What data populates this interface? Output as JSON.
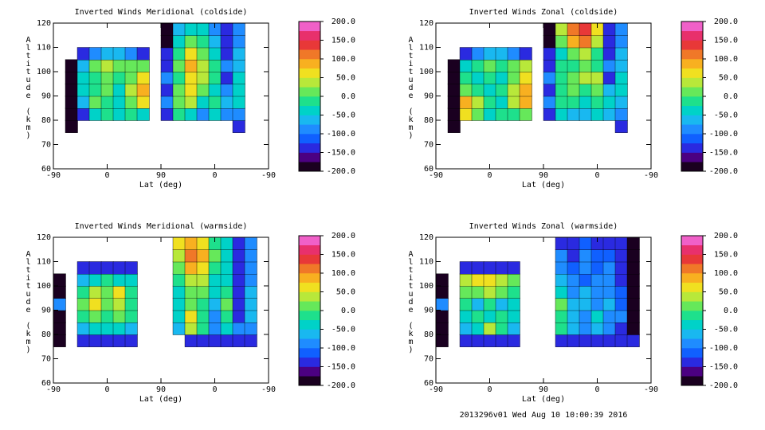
{
  "chart_data": [
    {
      "type": "heatmap",
      "title": "Inverted Winds Meridional (coldside)",
      "xlabel": "Lat (deg)",
      "ylabel": "Altitude (km)",
      "xcategories": [
        "-90",
        "0",
        "90",
        "0",
        "-90"
      ],
      "ylim": [
        60,
        120
      ],
      "yticks": [
        60,
        70,
        80,
        90,
        100,
        110,
        120
      ],
      "y": [
        77.5,
        82.5,
        87.5,
        92.5,
        97.5,
        102.5,
        107.5,
        112.5,
        117.5
      ],
      "z": [
        [
          null,
          -200,
          null,
          null,
          null,
          null,
          null,
          null,
          null,
          null,
          null,
          null,
          null,
          null,
          null,
          -150,
          null,
          null
        ],
        [
          null,
          -200,
          -150,
          -50,
          -25,
          -50,
          -25,
          -50,
          null,
          -150,
          -25,
          -50,
          -100,
          -50,
          -100,
          -100,
          null,
          null
        ],
        [
          null,
          -200,
          -75,
          0,
          -25,
          -50,
          0,
          50,
          null,
          -100,
          0,
          25,
          -50,
          -25,
          -75,
          -50,
          null,
          null
        ],
        [
          null,
          -200,
          -50,
          -25,
          0,
          -50,
          25,
          75,
          null,
          -150,
          0,
          50,
          0,
          -50,
          -100,
          -50,
          null,
          null
        ],
        [
          null,
          -200,
          -50,
          -25,
          0,
          -25,
          0,
          50,
          null,
          -100,
          -25,
          50,
          25,
          -25,
          -150,
          -50,
          null,
          null
        ],
        [
          null,
          -200,
          -75,
          0,
          25,
          0,
          0,
          0,
          null,
          -150,
          0,
          75,
          25,
          -25,
          -100,
          -75,
          null,
          null
        ],
        [
          null,
          null,
          -150,
          -100,
          -75,
          -75,
          -100,
          -150,
          null,
          -150,
          -25,
          50,
          0,
          -50,
          -150,
          -75,
          null,
          null
        ],
        [
          null,
          null,
          null,
          null,
          null,
          null,
          null,
          null,
          null,
          -200,
          -50,
          0,
          -25,
          -75,
          -150,
          -100,
          null,
          null
        ],
        [
          null,
          null,
          null,
          null,
          null,
          null,
          null,
          null,
          null,
          -200,
          -75,
          -50,
          -50,
          -100,
          -150,
          -100,
          null,
          null
        ]
      ]
    },
    {
      "type": "heatmap",
      "title": "Inverted Winds Zonal (coldside)",
      "xlabel": "Lat (deg)",
      "ylabel": "Altitude (km)",
      "xcategories": [
        "-90",
        "0",
        "90",
        "0",
        "-90"
      ],
      "ylim": [
        60,
        120
      ],
      "yticks": [
        60,
        70,
        80,
        90,
        100,
        110,
        120
      ],
      "y": [
        77.5,
        82.5,
        87.5,
        92.5,
        97.5,
        102.5,
        107.5,
        112.5,
        117.5
      ],
      "z": [
        [
          null,
          -200,
          null,
          null,
          null,
          null,
          null,
          null,
          null,
          null,
          null,
          null,
          null,
          null,
          null,
          -150,
          null,
          null
        ],
        [
          null,
          -200,
          50,
          0,
          -50,
          -25,
          -25,
          0,
          null,
          -150,
          -50,
          -75,
          -75,
          -50,
          -75,
          -100,
          null,
          null
        ],
        [
          null,
          -200,
          75,
          25,
          -25,
          -50,
          25,
          75,
          null,
          -100,
          -25,
          -25,
          -50,
          -25,
          -50,
          -75,
          null,
          null
        ],
        [
          null,
          -200,
          0,
          -25,
          -50,
          -25,
          25,
          75,
          null,
          -150,
          -25,
          0,
          -25,
          0,
          -75,
          -50,
          null,
          null
        ],
        [
          null,
          -200,
          -25,
          -50,
          -25,
          -50,
          0,
          50,
          null,
          -100,
          -25,
          0,
          25,
          25,
          -150,
          -50,
          null,
          null
        ],
        [
          null,
          -200,
          -50,
          -25,
          0,
          -25,
          0,
          25,
          null,
          -150,
          -25,
          -25,
          0,
          -25,
          -100,
          -75,
          null,
          null
        ],
        [
          null,
          null,
          -150,
          -100,
          -75,
          -75,
          -100,
          -150,
          null,
          -150,
          -50,
          0,
          25,
          -25,
          -150,
          -75,
          null,
          null
        ],
        [
          null,
          null,
          null,
          null,
          null,
          null,
          null,
          null,
          null,
          -200,
          0,
          75,
          100,
          25,
          -150,
          -100,
          null,
          null
        ],
        [
          null,
          null,
          null,
          null,
          null,
          null,
          null,
          null,
          null,
          -200,
          25,
          100,
          125,
          50,
          -150,
          -100,
          null,
          null
        ]
      ]
    },
    {
      "type": "heatmap",
      "title": "Inverted Winds Meridional (warmside)",
      "xlabel": "Lat (deg)",
      "ylabel": "Altitude (km)",
      "xcategories": [
        "-90",
        "0",
        "90",
        "0",
        "-90"
      ],
      "ylim": [
        60,
        120
      ],
      "yticks": [
        60,
        70,
        80,
        90,
        100,
        110,
        120
      ],
      "y": [
        77.5,
        82.5,
        87.5,
        92.5,
        97.5,
        102.5,
        107.5,
        112.5,
        117.5
      ],
      "z": [
        [
          -200,
          null,
          -150,
          -150,
          -150,
          -150,
          -150,
          null,
          null,
          null,
          null,
          -150,
          -150,
          -150,
          -150,
          -150,
          -150,
          null
        ],
        [
          -200,
          null,
          -75,
          -50,
          -50,
          -50,
          -75,
          null,
          null,
          null,
          -75,
          25,
          -25,
          -100,
          -50,
          -100,
          -100,
          null
        ],
        [
          -200,
          null,
          -25,
          0,
          -25,
          0,
          -25,
          null,
          null,
          null,
          -50,
          50,
          -25,
          -100,
          -25,
          -150,
          -75,
          null
        ],
        [
          -100,
          null,
          0,
          50,
          0,
          25,
          -25,
          null,
          null,
          null,
          -50,
          0,
          -25,
          -75,
          0,
          -150,
          -75,
          null
        ],
        [
          -200,
          null,
          -25,
          25,
          0,
          50,
          -25,
          null,
          null,
          null,
          -50,
          0,
          0,
          -50,
          -25,
          -150,
          -75,
          null
        ],
        [
          -200,
          null,
          -75,
          -50,
          -25,
          -50,
          -50,
          null,
          null,
          null,
          -25,
          25,
          25,
          -50,
          -50,
          -150,
          -100,
          null
        ],
        [
          null,
          null,
          -150,
          -150,
          -150,
          -150,
          -150,
          null,
          null,
          null,
          0,
          75,
          50,
          -25,
          -50,
          -150,
          -100,
          null
        ],
        [
          null,
          null,
          null,
          null,
          null,
          null,
          null,
          null,
          null,
          null,
          25,
          100,
          75,
          0,
          -50,
          -150,
          -100,
          null
        ],
        [
          null,
          null,
          null,
          null,
          null,
          null,
          null,
          null,
          null,
          null,
          50,
          75,
          50,
          -25,
          -50,
          -150,
          -100,
          null
        ]
      ]
    },
    {
      "type": "heatmap",
      "title": "Inverted Winds Zonal (warmside)",
      "xlabel": "Lat (deg)",
      "ylabel": "Altitude (km)",
      "xcategories": [
        "-90",
        "0",
        "90",
        "0",
        "-90"
      ],
      "ylim": [
        60,
        120
      ],
      "yticks": [
        60,
        70,
        80,
        90,
        100,
        110,
        120
      ],
      "y": [
        77.5,
        82.5,
        87.5,
        92.5,
        97.5,
        102.5,
        107.5,
        112.5,
        117.5
      ],
      "z": [
        [
          -200,
          null,
          -150,
          -150,
          -150,
          -150,
          -150,
          null,
          null,
          null,
          -150,
          -150,
          -150,
          -150,
          -150,
          -150,
          -150,
          null
        ],
        [
          -200,
          null,
          -75,
          -50,
          25,
          -25,
          -75,
          null,
          null,
          null,
          -25,
          -75,
          -100,
          -75,
          -100,
          -150,
          -200,
          null
        ],
        [
          -200,
          null,
          -50,
          -25,
          -50,
          -25,
          -50,
          null,
          null,
          null,
          -25,
          -75,
          -100,
          -50,
          -100,
          -100,
          -200,
          null
        ],
        [
          -100,
          null,
          -25,
          -75,
          -25,
          -75,
          -50,
          null,
          null,
          null,
          0,
          -75,
          -75,
          -100,
          -75,
          -125,
          -200,
          null
        ],
        [
          -200,
          null,
          0,
          0,
          25,
          0,
          -25,
          null,
          null,
          null,
          -50,
          -100,
          -75,
          -100,
          -100,
          -125,
          -200,
          null
        ],
        [
          -200,
          null,
          25,
          50,
          50,
          25,
          0,
          null,
          null,
          null,
          -75,
          -100,
          -125,
          -100,
          -100,
          -150,
          -200,
          null
        ],
        [
          null,
          null,
          -150,
          -150,
          -150,
          -150,
          -150,
          null,
          null,
          null,
          -100,
          -125,
          -100,
          -125,
          -100,
          -150,
          -200,
          null
        ],
        [
          null,
          null,
          null,
          null,
          null,
          null,
          null,
          null,
          null,
          null,
          -100,
          -150,
          -100,
          -125,
          -125,
          -150,
          -200,
          null
        ],
        [
          null,
          null,
          null,
          null,
          null,
          null,
          null,
          null,
          null,
          null,
          -150,
          -150,
          -125,
          -150,
          -150,
          -150,
          -200,
          null
        ]
      ]
    }
  ],
  "colorbar": {
    "lim": [
      -200,
      200
    ],
    "colors": [
      "#1a0020",
      "#4b0082",
      "#2a2ae0",
      "#1060ff",
      "#1f8cff",
      "#19b8f0",
      "#00d2c8",
      "#1ee08c",
      "#66e85a",
      "#b8e83a",
      "#f0e020",
      "#f8b020",
      "#f07828",
      "#e83838",
      "#e8306c",
      "#f060c8"
    ],
    "ticks": [
      {
        "value": -200,
        "label": "-200.0"
      },
      {
        "value": -150,
        "label": "-150.0"
      },
      {
        "value": -100,
        "label": "-100.0"
      },
      {
        "value": -50,
        "label": "-50.0"
      },
      {
        "value": 0,
        "label": "0.0"
      },
      {
        "value": 50,
        "label": "50.0"
      },
      {
        "value": 100,
        "label": "100.0"
      },
      {
        "value": 150,
        "label": "150.0"
      },
      {
        "value": 200,
        "label": "200.0"
      }
    ]
  },
  "footer": "2013296v01 Wed Aug 10 10:00:39 2016"
}
